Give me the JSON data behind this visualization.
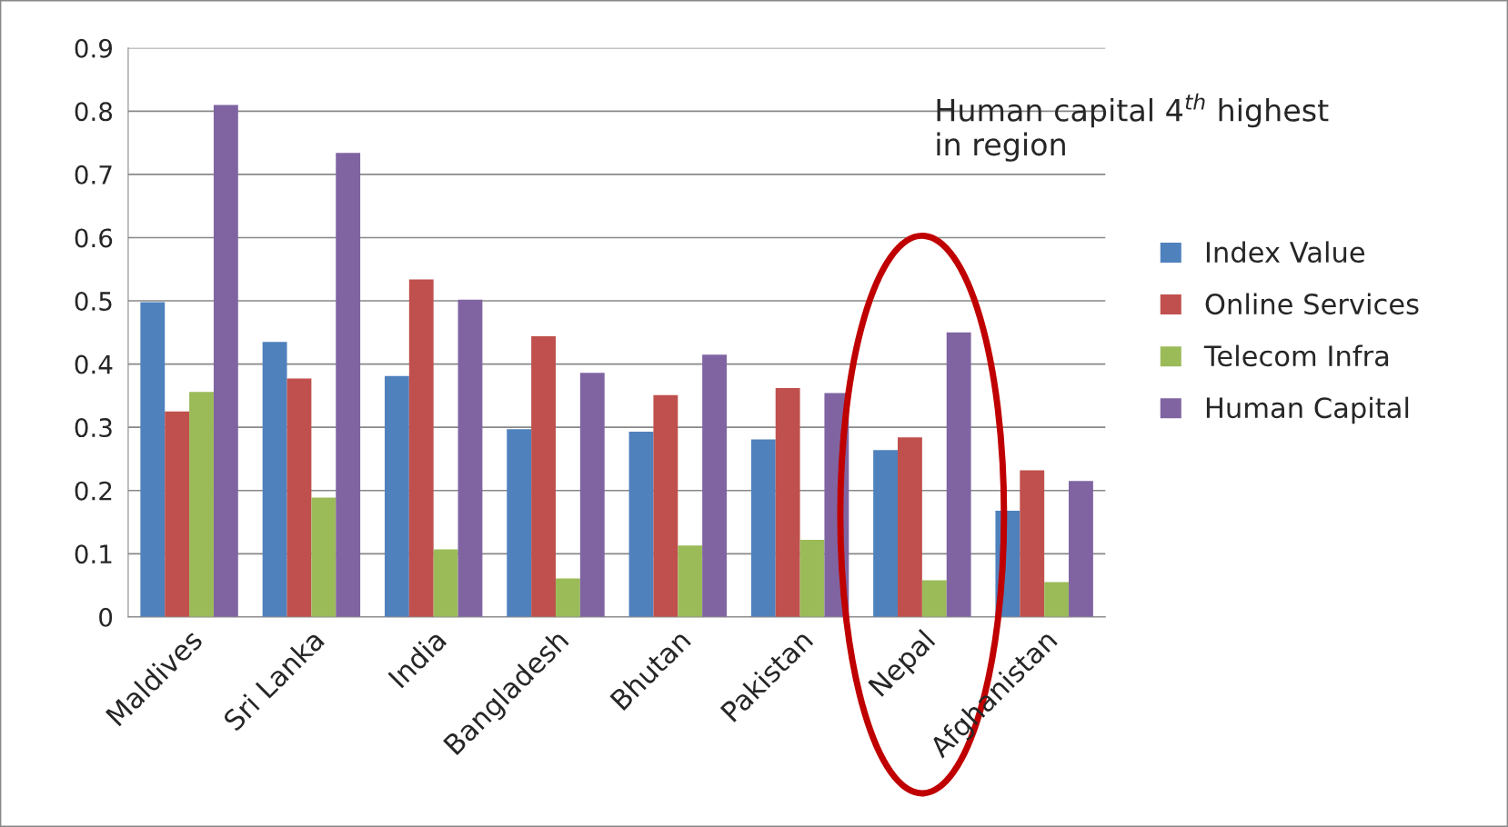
{
  "chart_data": {
    "type": "bar",
    "categories": [
      "Maldives",
      "Sri Lanka",
      "India",
      "Bangladesh",
      "Bhutan",
      "Pakistan",
      "Nepal",
      "Afghanistan"
    ],
    "series": [
      {
        "name": "Index Value",
        "color": "#4f81bd",
        "values": [
          0.498,
          0.435,
          0.381,
          0.297,
          0.293,
          0.281,
          0.264,
          0.168
        ]
      },
      {
        "name": "Online Services",
        "color": "#c0504d",
        "values": [
          0.325,
          0.377,
          0.534,
          0.444,
          0.351,
          0.362,
          0.284,
          0.232
        ]
      },
      {
        "name": "Telecom Infra",
        "color": "#9bbb59",
        "values": [
          0.356,
          0.189,
          0.107,
          0.061,
          0.113,
          0.122,
          0.058,
          0.055
        ]
      },
      {
        "name": "Human Capital",
        "color": "#8064a2",
        "values": [
          0.81,
          0.734,
          0.502,
          0.386,
          0.415,
          0.354,
          0.45,
          0.215
        ]
      }
    ],
    "ylim": [
      0,
      0.9
    ],
    "yticks": [
      0,
      0.1,
      0.2,
      0.3,
      0.4,
      0.5,
      0.6,
      0.7,
      0.8,
      0.9
    ],
    "grid": "y",
    "legend": "right",
    "annotations": [
      "Human capital 4$^{th}$ highest\nin region"
    ]
  }
}
